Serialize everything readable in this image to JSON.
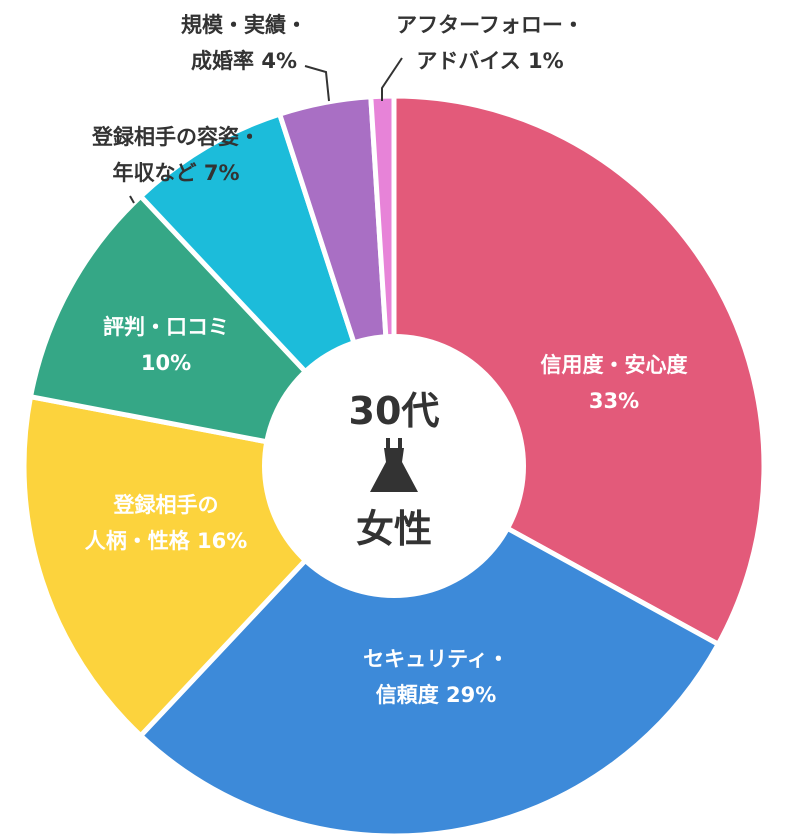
{
  "chart_data": {
    "type": "pie",
    "variant": "donut",
    "center_label": {
      "line1": "30代",
      "icon": "dress-icon",
      "line2": "女性"
    },
    "slices": [
      {
        "label_lines": [
          "信用度・安心度",
          "33%"
        ],
        "value": 33,
        "color": "#e35a7a",
        "label_placement": "inside"
      },
      {
        "label_lines": [
          "セキュリティ・",
          "信頼度 29%"
        ],
        "value": 29,
        "color": "#3d8ad9",
        "label_placement": "inside"
      },
      {
        "label_lines": [
          "登録相手の",
          "人柄・性格 16%"
        ],
        "value": 16,
        "color": "#fcd33d",
        "label_placement": "inside",
        "label_color": "#333333"
      },
      {
        "label_lines": [
          "評判・口コミ",
          "10%"
        ],
        "value": 10,
        "color": "#35a786",
        "label_placement": "inside"
      },
      {
        "label_lines": [
          "登録相手の容姿・",
          "年収など 7%"
        ],
        "value": 7,
        "color": "#1cbcda",
        "label_placement": "outside"
      },
      {
        "label_lines": [
          "規模・実績・",
          "成婚率 4%"
        ],
        "value": 4,
        "color": "#a96fc4",
        "label_placement": "outside"
      },
      {
        "label_lines": [
          "アフターフォロー・",
          "アドバイス 1%"
        ],
        "value": 1,
        "color": "#e783d8",
        "label_placement": "outside"
      }
    ]
  }
}
